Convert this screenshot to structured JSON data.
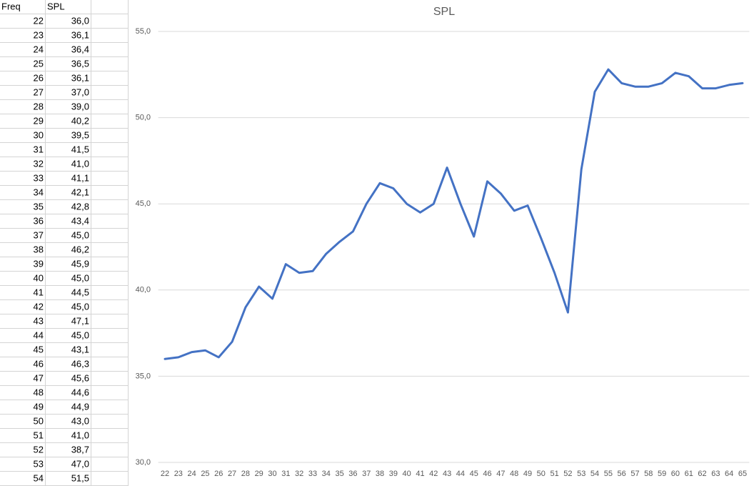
{
  "table": {
    "header": [
      "Freq",
      "SPL"
    ],
    "rows": [
      [
        22,
        "36,0"
      ],
      [
        23,
        "36,1"
      ],
      [
        24,
        "36,4"
      ],
      [
        25,
        "36,5"
      ],
      [
        26,
        "36,1"
      ],
      [
        27,
        "37,0"
      ],
      [
        28,
        "39,0"
      ],
      [
        29,
        "40,2"
      ],
      [
        30,
        "39,5"
      ],
      [
        31,
        "41,5"
      ],
      [
        32,
        "41,0"
      ],
      [
        33,
        "41,1"
      ],
      [
        34,
        "42,1"
      ],
      [
        35,
        "42,8"
      ],
      [
        36,
        "43,4"
      ],
      [
        37,
        "45,0"
      ],
      [
        38,
        "46,2"
      ],
      [
        39,
        "45,9"
      ],
      [
        40,
        "45,0"
      ],
      [
        41,
        "44,5"
      ],
      [
        42,
        "45,0"
      ],
      [
        43,
        "47,1"
      ],
      [
        44,
        "45,0"
      ],
      [
        45,
        "43,1"
      ],
      [
        46,
        "46,3"
      ],
      [
        47,
        "45,6"
      ],
      [
        48,
        "44,6"
      ],
      [
        49,
        "44,9"
      ],
      [
        50,
        "43,0"
      ],
      [
        51,
        "41,0"
      ],
      [
        52,
        "38,7"
      ],
      [
        53,
        "47,0"
      ],
      [
        54,
        "51,5"
      ]
    ]
  },
  "chart_data": {
    "type": "line",
    "title": "SPL",
    "categories": [
      22,
      23,
      24,
      25,
      26,
      27,
      28,
      29,
      30,
      31,
      32,
      33,
      34,
      35,
      36,
      37,
      38,
      39,
      40,
      41,
      42,
      43,
      44,
      45,
      46,
      47,
      48,
      49,
      50,
      51,
      52,
      53,
      54,
      55,
      56,
      57,
      58,
      59,
      60,
      61,
      62,
      63,
      64,
      65
    ],
    "values": [
      36.0,
      36.1,
      36.4,
      36.5,
      36.1,
      37.0,
      39.0,
      40.2,
      39.5,
      41.5,
      41.0,
      41.1,
      42.1,
      42.8,
      43.4,
      45.0,
      46.2,
      45.9,
      45.0,
      44.5,
      45.0,
      47.1,
      45.0,
      43.1,
      46.3,
      45.6,
      44.6,
      44.9,
      43.0,
      41.0,
      38.7,
      47.0,
      51.5,
      52.8,
      52.0,
      51.8,
      51.8,
      52.0,
      52.6,
      52.4,
      51.7,
      51.7,
      51.9,
      52.0
    ],
    "color": "#4472c4",
    "ylim": [
      30,
      55
    ],
    "yticks": [
      {
        "value": 30,
        "label": "30,0"
      },
      {
        "value": 35,
        "label": "35,0"
      },
      {
        "value": 40,
        "label": "40,0"
      },
      {
        "value": 45,
        "label": "45,0"
      },
      {
        "value": 50,
        "label": "50,0"
      },
      {
        "value": 55,
        "label": "55,0"
      }
    ],
    "grid": true
  }
}
